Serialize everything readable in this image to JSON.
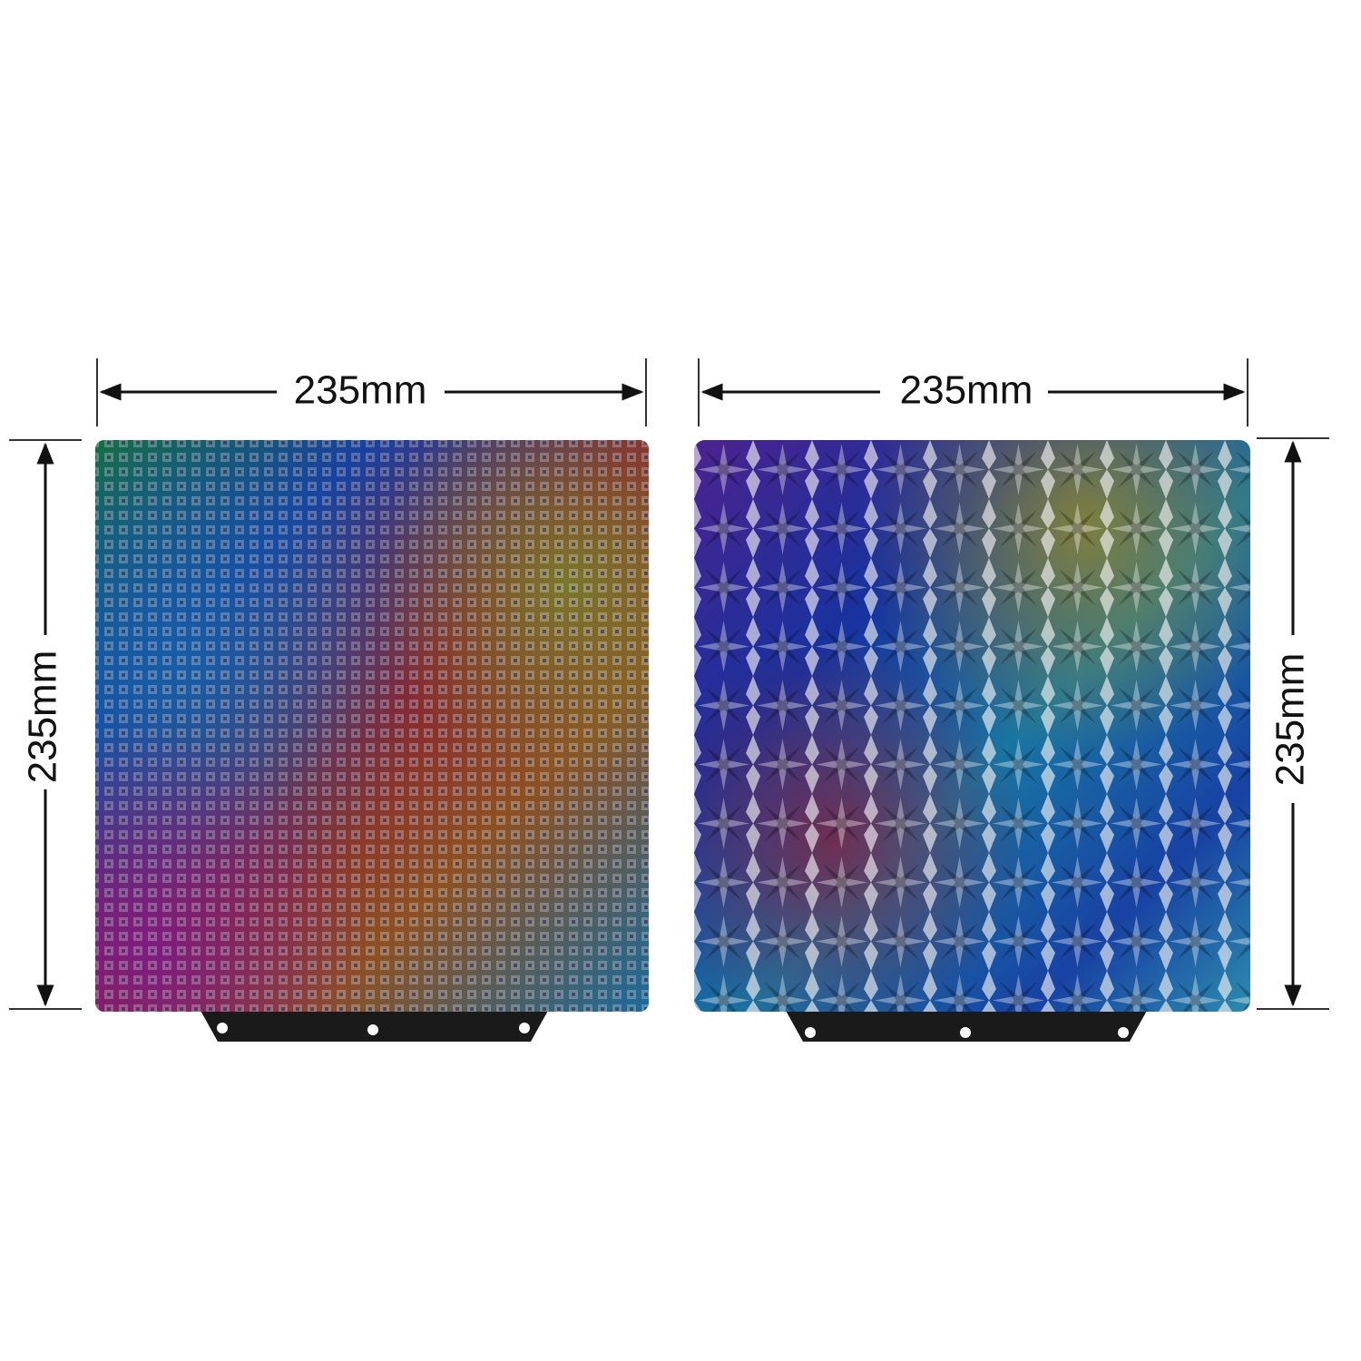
{
  "left_plate": {
    "width_label": "235mm",
    "height_label": "235mm"
  },
  "right_plate": {
    "width_label": "235mm",
    "height_label": "235mm"
  }
}
